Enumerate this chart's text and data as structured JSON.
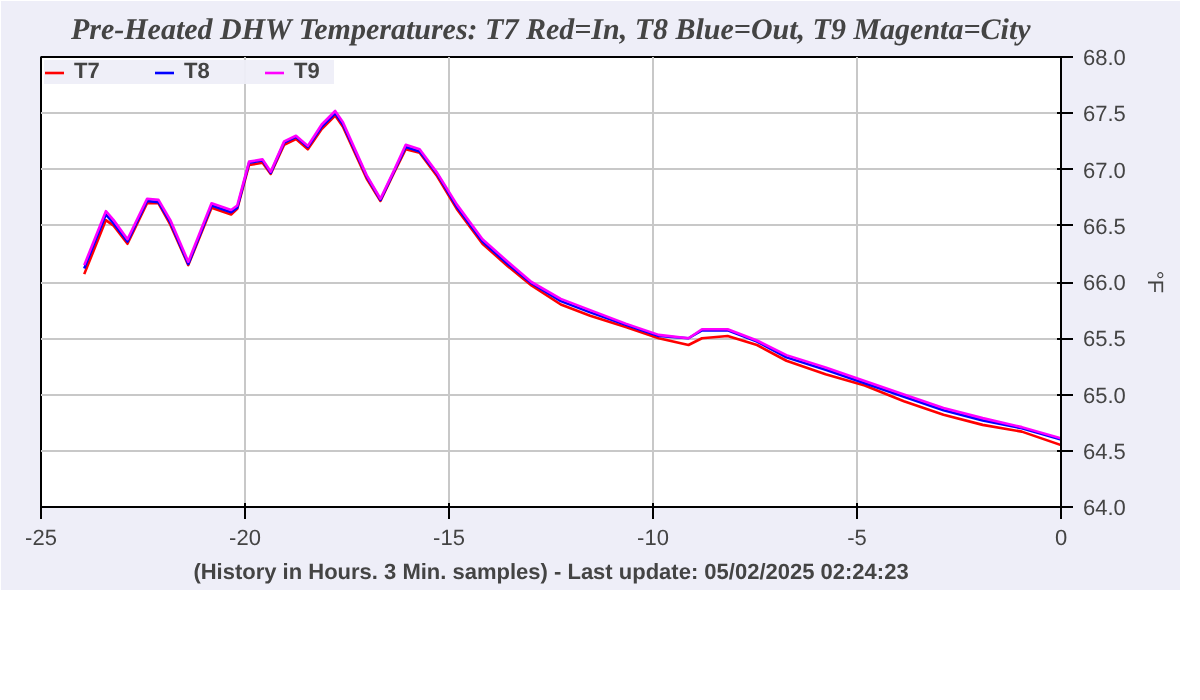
{
  "chart_data": {
    "type": "line",
    "title": "Pre-Heated DHW Temperatures: T7 Red=In, T8 Blue=Out, T9 Magenta=City",
    "xlabel": "(History in Hours. 3 Min. samples) - Last update: 05/02/2025 02:24:23",
    "ylabel": "°F",
    "x": [
      -23.94,
      -23.41,
      -23.22,
      -22.88,
      -22.4,
      -22.12,
      -21.83,
      -21.39,
      -20.82,
      -20.34,
      -20.19,
      -19.9,
      -19.57,
      -19.37,
      -19.04,
      -18.75,
      -18.46,
      -18.12,
      -17.79,
      -17.6,
      -17.02,
      -16.68,
      -16.35,
      -16.06,
      -15.72,
      -15.29,
      -14.81,
      -14.18,
      -13.56,
      -12.98,
      -12.26,
      -11.54,
      -10.67,
      -9.86,
      -9.13,
      -8.8,
      -8.17,
      -7.45,
      -6.73,
      -5.77,
      -4.81,
      -3.85,
      -2.88,
      -1.92,
      -0.96,
      0
    ],
    "series": [
      {
        "name": "T7",
        "color": "#ff0000",
        "values": [
          66.07,
          66.55,
          66.5,
          66.34,
          66.7,
          66.7,
          66.51,
          66.15,
          66.66,
          66.6,
          66.65,
          67.04,
          67.06,
          66.96,
          67.22,
          67.27,
          67.18,
          67.36,
          67.48,
          67.38,
          66.92,
          66.72,
          66.97,
          67.18,
          67.15,
          66.94,
          66.65,
          66.34,
          66.14,
          65.97,
          65.8,
          65.7,
          65.6,
          65.5,
          65.44,
          65.5,
          65.52,
          65.44,
          65.3,
          65.18,
          65.08,
          64.94,
          64.82,
          64.73,
          64.67,
          64.55
        ]
      },
      {
        "name": "T8",
        "color": "#0000ff",
        "values": [
          66.12,
          66.6,
          66.52,
          66.36,
          66.72,
          66.71,
          66.53,
          66.16,
          66.68,
          66.62,
          66.66,
          67.06,
          67.08,
          66.97,
          67.24,
          67.29,
          67.2,
          67.38,
          67.5,
          67.4,
          66.94,
          66.73,
          66.98,
          67.2,
          67.16,
          66.96,
          66.67,
          66.36,
          66.16,
          65.99,
          65.83,
          65.73,
          65.62,
          65.52,
          65.5,
          65.57,
          65.57,
          65.47,
          65.33,
          65.22,
          65.1,
          64.98,
          64.86,
          64.77,
          64.7,
          64.6
        ]
      },
      {
        "name": "T9",
        "color": "#ff00ff",
        "values": [
          66.15,
          66.63,
          66.55,
          66.38,
          66.74,
          66.73,
          66.55,
          66.18,
          66.7,
          66.64,
          66.68,
          67.07,
          67.09,
          66.98,
          67.25,
          67.3,
          67.21,
          67.4,
          67.52,
          67.42,
          66.95,
          66.74,
          66.99,
          67.22,
          67.18,
          66.97,
          66.69,
          66.38,
          66.18,
          66.0,
          65.85,
          65.75,
          65.63,
          65.53,
          65.5,
          65.58,
          65.58,
          65.48,
          65.35,
          65.24,
          65.12,
          65.0,
          64.88,
          64.79,
          64.71,
          64.61
        ]
      }
    ],
    "xlim": [
      -25,
      0
    ],
    "xticks": [
      -25,
      -20,
      -15,
      -10,
      -5,
      0
    ],
    "ylim": [
      64.0,
      68.0
    ],
    "yticks": [
      {
        "value": 64,
        "label": "64.0"
      },
      {
        "value": 64.5,
        "label": "64.5"
      },
      {
        "value": 65,
        "label": "65.0"
      },
      {
        "value": 65.5,
        "label": "65.5"
      },
      {
        "value": 66,
        "label": "66.0"
      },
      {
        "value": 66.5,
        "label": "66.5"
      },
      {
        "value": 67,
        "label": "67.0"
      },
      {
        "value": 67.5,
        "label": "67.5"
      },
      {
        "value": 68,
        "label": "68.0"
      }
    ],
    "grid": true,
    "legend": "top left",
    "marker": "none",
    "line_style": "solid"
  }
}
